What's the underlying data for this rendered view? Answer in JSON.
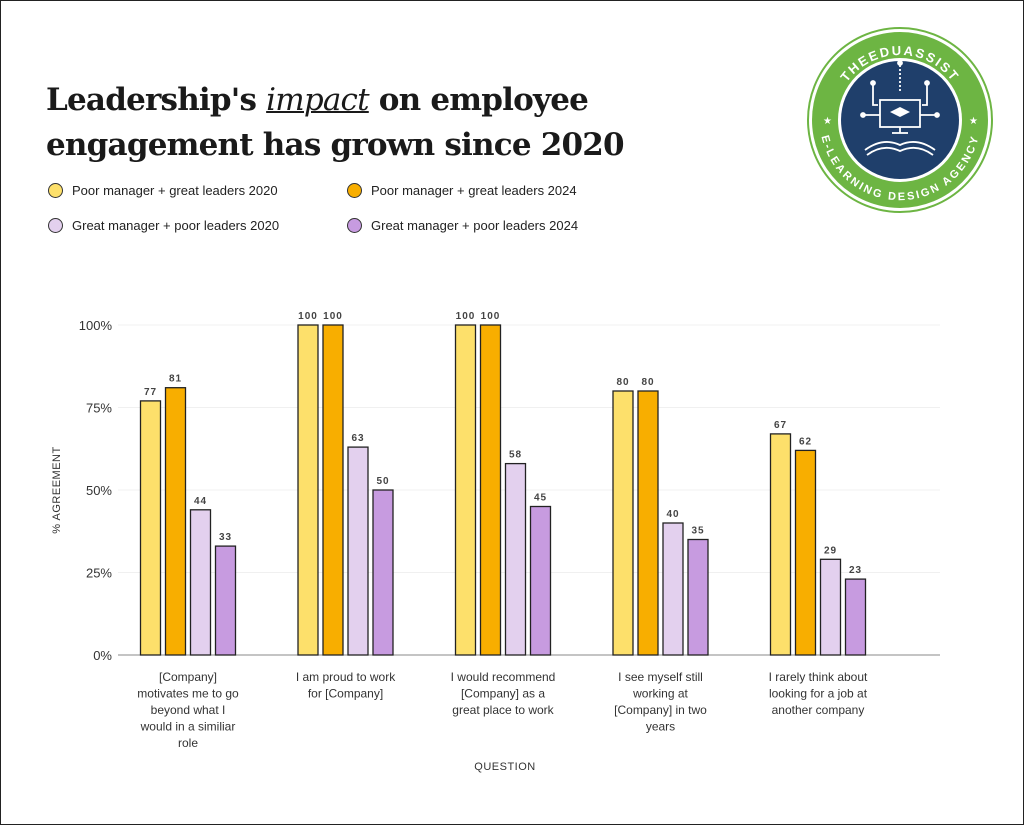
{
  "title": {
    "before": "Leadership's ",
    "highlight": "impact",
    "after": " on employee",
    "line2": "engagement has grown since 2020"
  },
  "logo": {
    "top_text": "THEEDUASSIST",
    "bottom_text": "E-LEARNING DESIGN AGENCY",
    "ring_color": "#6db543",
    "inner_color": "#1f3f6b"
  },
  "chart_data": {
    "type": "bar",
    "categories": [
      "[Company] motivates me to go beyond what I would in a similiar role",
      "I am proud to work for [Company]",
      "I would recommend [Company] as a great place to work",
      "I see myself still working at [Company] in two years",
      "I rarely think about looking for a job at another company"
    ],
    "category_lines": [
      [
        "[Company]",
        "motivates me to go",
        "beyond what I",
        "would in a similiar",
        "role"
      ],
      [
        "I am proud to work",
        "for [Company]"
      ],
      [
        "I would recommend",
        "[Company] as a",
        "great place to work"
      ],
      [
        "I see myself still",
        "working at",
        "[Company] in two",
        "years"
      ],
      [
        "I rarely think about",
        "looking for a job at",
        "another company"
      ]
    ],
    "series": [
      {
        "name": "Poor manager + great leaders 2020",
        "color": "#fde06b",
        "values": [
          77,
          100,
          100,
          80,
          67
        ]
      },
      {
        "name": "Poor manager + great leaders 2024",
        "color": "#f8ae00",
        "values": [
          81,
          100,
          100,
          80,
          62
        ]
      },
      {
        "name": "Great manager + poor leaders 2020",
        "color": "#e3d0ee",
        "values": [
          44,
          63,
          58,
          40,
          29
        ]
      },
      {
        "name": "Great manager + poor leaders 2024",
        "color": "#c79be0",
        "values": [
          33,
          50,
          45,
          35,
          23
        ]
      }
    ],
    "xlabel": "QUESTION",
    "ylabel": "% AGREEMENT",
    "ylim": [
      0,
      100
    ],
    "yticks": [
      "0%",
      "25%",
      "50%",
      "75%",
      "100%"
    ],
    "grid": true,
    "legend_position": "top-left"
  }
}
